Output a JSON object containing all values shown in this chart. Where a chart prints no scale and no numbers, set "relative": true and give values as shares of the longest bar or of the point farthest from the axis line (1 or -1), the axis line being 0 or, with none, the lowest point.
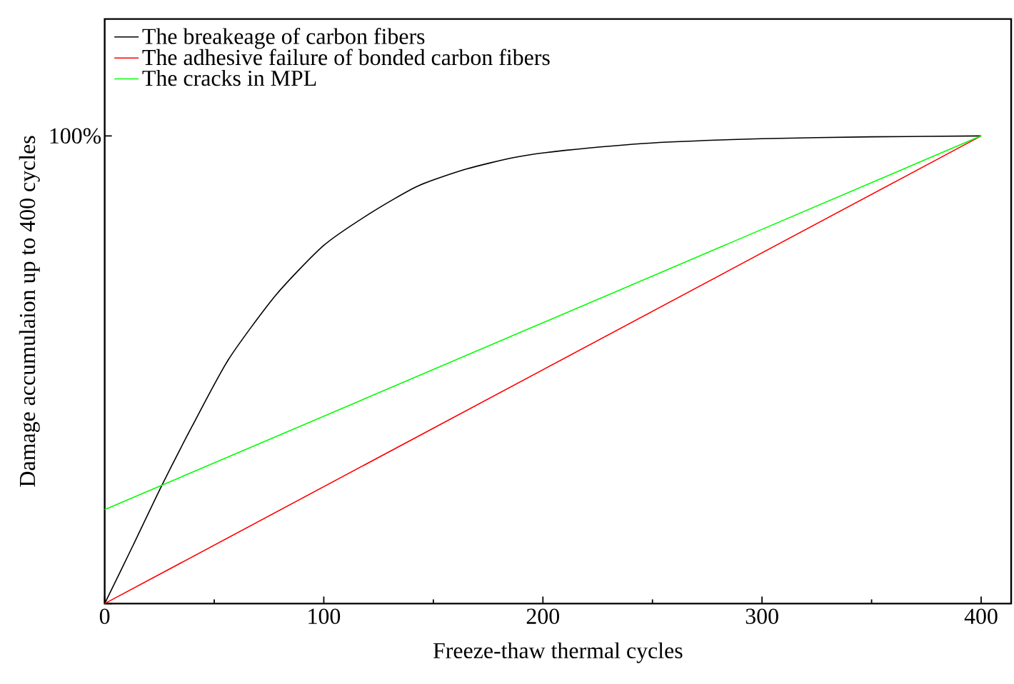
{
  "chart_data": {
    "type": "line",
    "xlabel": "Freeze-thaw thermal cycles",
    "ylabel": "Damage accumulaion up to 400 cycles",
    "xlim": [
      0,
      413.7
    ],
    "xticks": [
      0,
      100,
      200,
      300,
      400
    ],
    "relative": true,
    "annotations": [
      "100%"
    ],
    "legend": "top left",
    "grid": false,
    "marker": "none",
    "line_style": "solid",
    "series": [
      {
        "name": "The breakeage of carbon fibers",
        "color": "#000000",
        "x": [
          0,
          13,
          26,
          40,
          56.5,
          78,
          100,
          122,
          143,
          165,
          187,
          210,
          250,
          300,
          350,
          400
        ],
        "values": [
          0,
          0.125,
          0.252,
          0.38,
          0.522,
          0.659,
          0.766,
          0.837,
          0.893,
          0.929,
          0.954,
          0.969,
          0.985,
          0.994,
          0.998,
          1
        ]
      },
      {
        "name": "The adhesive failure of bonded carbon fibers",
        "color": "#ff0000",
        "x": [
          0,
          400
        ],
        "values": [
          0,
          1
        ]
      },
      {
        "name": "The cracks in MPL",
        "color": "#00ff00",
        "x": [
          0,
          400
        ],
        "values": [
          0.201,
          1
        ]
      }
    ]
  }
}
